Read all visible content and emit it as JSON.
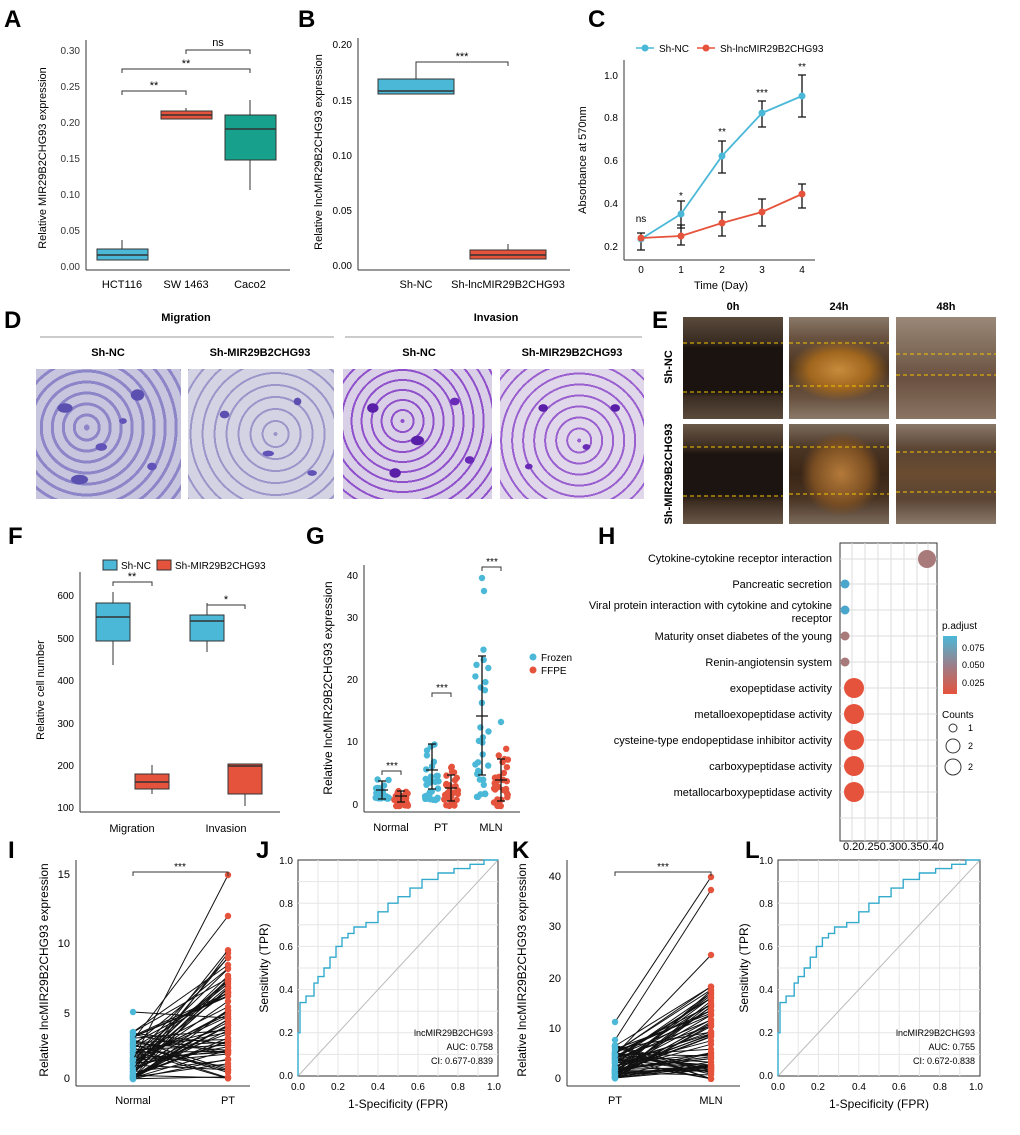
{
  "panel_letters": [
    "A",
    "B",
    "C",
    "D",
    "E",
    "F",
    "G",
    "H",
    "I",
    "J",
    "K",
    "L"
  ],
  "colors": {
    "blue": "#4bb8d8",
    "red": "#e5533c",
    "teal": "#17a08b",
    "crystal_violet": "#6a55c8",
    "scratch_line": "#f2c400",
    "roc": "#33aacc"
  },
  "panelA": {
    "ylabel": "Relative MIR29B2CHG93 expression",
    "categories": [
      "HCT116",
      "SW 1463",
      "Caco2"
    ],
    "yticks": [
      "0.00",
      "0.05",
      "0.10",
      "0.15",
      "0.20",
      "0.25",
      "0.30"
    ],
    "sig": [
      "**",
      "**",
      "ns"
    ]
  },
  "panelB": {
    "ylabel": "Relative lncMIR29B2CHG93 expression",
    "categories": [
      "Sh-NC",
      "Sh-lncMIR29B2CHG93"
    ],
    "yticks": [
      "0.00",
      "0.05",
      "0.10",
      "0.15",
      "0.20"
    ],
    "sig": "***"
  },
  "panelC": {
    "legend": [
      "Sh-NC",
      "Sh-lncMIR29B2CHG93"
    ],
    "ylabel": "Absorbance at 570nm",
    "xlabel": "Time (Day)",
    "xticks": [
      "0",
      "1",
      "2",
      "3",
      "4"
    ],
    "yticks": [
      "0.2",
      "0.4",
      "0.6",
      "0.8",
      "1.0"
    ],
    "sig": [
      "ns",
      "*",
      "**",
      "***",
      "**"
    ]
  },
  "panelD": {
    "groups": [
      "Migration",
      "Invasion"
    ],
    "conditions": [
      "Sh-NC",
      "Sh-MIR29B2CHG93",
      "Sh-NC",
      "Sh-MIR29B2CHG93"
    ]
  },
  "panelE": {
    "times": [
      "0h",
      "24h",
      "48h"
    ],
    "rows": [
      "Sh-NC",
      "Sh-MIR29B2CHG93"
    ]
  },
  "panelF": {
    "legend": [
      "Sh-NC",
      "Sh-MIR29B2CHG93"
    ],
    "ylabel": "Relative cell number",
    "categories": [
      "Migration",
      "Invasion"
    ],
    "yticks": [
      "100",
      "200",
      "300",
      "400",
      "500",
      "600"
    ],
    "sig": [
      "**",
      "*"
    ]
  },
  "panelG": {
    "ylabel": "Relative lncMIR29B2CHG93 expression",
    "categories": [
      "Normal",
      "PT",
      "MLN"
    ],
    "yticks": [
      "0",
      "10",
      "20",
      "30",
      "40"
    ],
    "legend": [
      "Frozen",
      "FFPE"
    ],
    "sig": [
      "***",
      "***",
      "***"
    ]
  },
  "panelH": {
    "terms": [
      "Cytokine-cytokine receptor interaction",
      "Pancreatic secretion",
      "Viral protein interaction with cytokine and cytokine",
      "receptor",
      "Maturity onset diabetes of the young",
      "Renin-angiotensin system",
      "exopeptidase activity",
      "metalloexopeptidase activity",
      "cysteine-type endopeptidase inhibitor activity",
      "carboxypeptidase activity",
      "metallocarboxypeptidase activity"
    ],
    "xlabel": "GeneRatio",
    "xticks": "0.20.250.300.350.40",
    "padjust_title": "p.adjust",
    "padjust_ticks": [
      "0.075",
      "0.050",
      "0.025"
    ],
    "counts_title": "Counts",
    "counts_ticks": [
      "1",
      "2",
      "2"
    ]
  },
  "panelI": {
    "ylabel": "Relative lncMIR29B2CHG93 expression",
    "categories": [
      "Normal",
      "PT"
    ],
    "yticks": [
      "0",
      "5",
      "10",
      "15"
    ],
    "sig": "***"
  },
  "panelJ": {
    "ylabel": "Sensitivity (TPR)",
    "xlabel": "1-Specificity (FPR)",
    "ticks": [
      "0.0",
      "0.2",
      "0.4",
      "0.6",
      "0.8",
      "1.0"
    ],
    "annotation": [
      "lncMIR29B2CHG93",
      "AUC: 0.758",
      "CI: 0.677-0.839"
    ]
  },
  "panelK": {
    "ylabel": "Relative lncMIR29B2CHG93 expression",
    "categories": [
      "PT",
      "MLN"
    ],
    "yticks": [
      "0",
      "10",
      "20",
      "30",
      "40"
    ],
    "sig": "***"
  },
  "panelL": {
    "ylabel": "Sensitivity (TPR)",
    "xlabel": "1-Specificity (FPR)",
    "ticks": [
      "0.0",
      "0.2",
      "0.4",
      "0.6",
      "0.8",
      "1.0"
    ],
    "annotation": [
      "lncMIR29B2CHG93",
      "AUC: 0.755",
      "CI: 0.672-0.838"
    ]
  }
}
